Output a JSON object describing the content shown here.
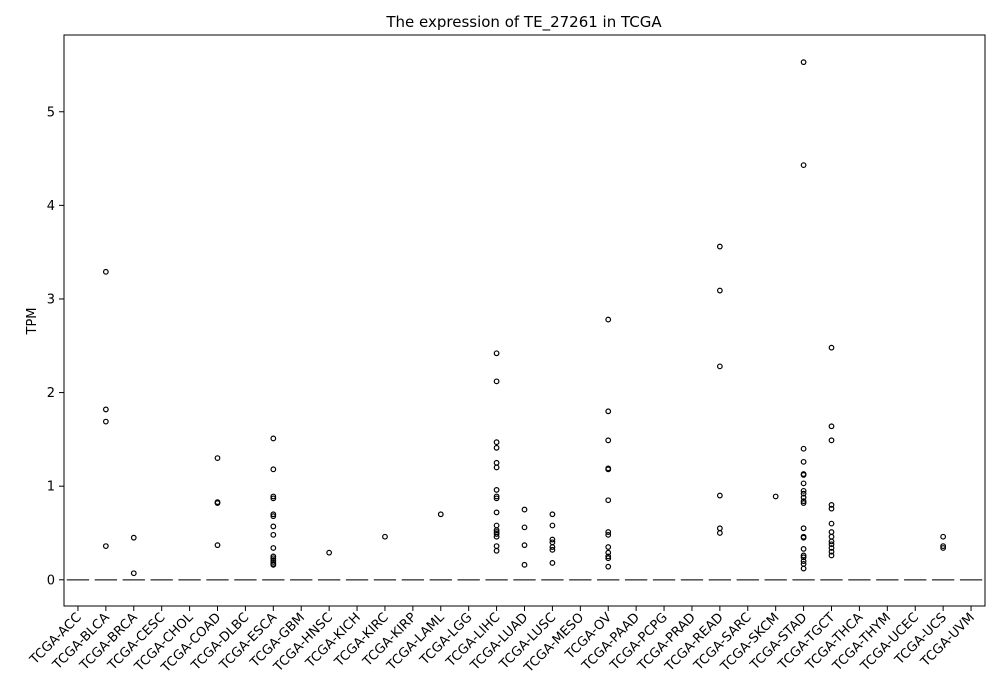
{
  "chart_data": {
    "type": "box",
    "title": "The expression of TE_27261 in TCGA",
    "xlabel": "",
    "ylabel": "TPM",
    "ylim": [
      -0.28,
      5.82
    ],
    "yticks": [
      0,
      1,
      2,
      3,
      4,
      5
    ],
    "grid": false,
    "legend": "none",
    "categories": [
      "TCGA-ACC",
      "TCGA-BLCA",
      "TCGA-BRCA",
      "TCGA-CESC",
      "TCGA-CHOL",
      "TCGA-COAD",
      "TCGA-DLBC",
      "TCGA-ESCA",
      "TCGA-GBM",
      "TCGA-HNSC",
      "TCGA-KICH",
      "TCGA-KIRC",
      "TCGA-KIRP",
      "TCGA-LAML",
      "TCGA-LGG",
      "TCGA-LIHC",
      "TCGA-LUAD",
      "TCGA-LUSC",
      "TCGA-MESO",
      "TCGA-OV",
      "TCGA-PAAD",
      "TCGA-PCPG",
      "TCGA-PRAD",
      "TCGA-READ",
      "TCGA-SARC",
      "TCGA-SKCM",
      "TCGA-STAD",
      "TCGA-TGCT",
      "TCGA-THCA",
      "TCGA-THYM",
      "TCGA-UCEC",
      "TCGA-UCS",
      "TCGA-UVM"
    ],
    "median": [
      0,
      0,
      0,
      0,
      0,
      0,
      0,
      0,
      0,
      0,
      0,
      0,
      0,
      0,
      0,
      0,
      0,
      0,
      0,
      0,
      0,
      0,
      0,
      0,
      0,
      0,
      0,
      0,
      0,
      0,
      0,
      0,
      0
    ],
    "outliers": [
      [],
      [
        3.29,
        1.82,
        1.69,
        0.36
      ],
      [
        0.45,
        0.07
      ],
      [],
      [],
      [
        1.3,
        0.83,
        0.82,
        0.37
      ],
      [],
      [
        1.51,
        1.18,
        0.89,
        0.87,
        0.7,
        0.68,
        0.57,
        0.48,
        0.34,
        0.25,
        0.23,
        0.21,
        0.19,
        0.17,
        0.16
      ],
      [],
      [
        0.29
      ],
      [],
      [
        0.46
      ],
      [],
      [
        0.7
      ],
      [],
      [
        2.42,
        2.12,
        1.47,
        1.41,
        1.25,
        1.2,
        0.96,
        0.89,
        0.87,
        0.72,
        0.58,
        0.53,
        0.51,
        0.49,
        0.46,
        0.36,
        0.31
      ],
      [
        0.75,
        0.56,
        0.37,
        0.16
      ],
      [
        0.7,
        0.58,
        0.43,
        0.4,
        0.35,
        0.32,
        0.18
      ],
      [],
      [
        2.78,
        1.8,
        1.49,
        1.19,
        1.18,
        0.85,
        0.51,
        0.48,
        0.35,
        0.29,
        0.25,
        0.23,
        0.14
      ],
      [],
      [],
      [],
      [
        3.56,
        3.09,
        2.28,
        0.9,
        0.55,
        0.5
      ],
      [],
      [
        0.89
      ],
      [
        5.53,
        4.43,
        1.4,
        1.26,
        1.13,
        1.12,
        1.03,
        0.95,
        0.92,
        0.88,
        0.84,
        0.82,
        0.55,
        0.46,
        0.45,
        0.33,
        0.26,
        0.24,
        0.2,
        0.17,
        0.12
      ],
      [
        2.48,
        1.64,
        1.49,
        0.8,
        0.76,
        0.6,
        0.51,
        0.46,
        0.41,
        0.38,
        0.34,
        0.3,
        0.26
      ],
      [],
      [],
      [],
      [
        0.46,
        0.36,
        0.34
      ],
      []
    ]
  }
}
